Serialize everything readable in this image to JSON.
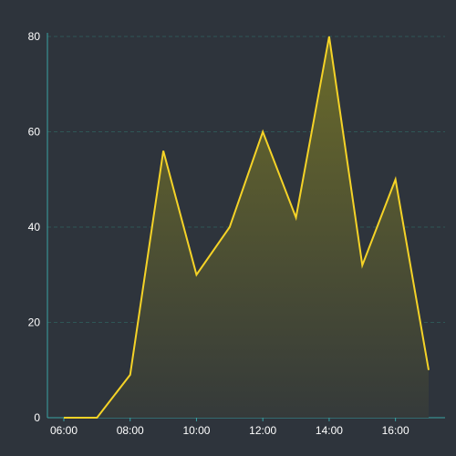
{
  "chart_data": {
    "type": "area",
    "title": "",
    "xlabel": "",
    "ylabel": "",
    "x": [
      "06:00",
      "07:00",
      "08:00",
      "09:00",
      "10:00",
      "11:00",
      "12:00",
      "13:00",
      "14:00",
      "15:00",
      "16:00",
      "17:00"
    ],
    "x_tick_labels": [
      "06:00",
      "08:00",
      "10:00",
      "12:00",
      "14:00",
      "16:00"
    ],
    "y_tick_labels": [
      "0",
      "20",
      "40",
      "60",
      "80"
    ],
    "ylim": [
      0,
      80
    ],
    "grid": true,
    "series": [
      {
        "values": [
          0,
          0,
          9,
          56,
          30,
          40,
          60,
          42,
          80,
          32,
          50,
          10
        ]
      }
    ],
    "colors": {
      "line": "#f5d327",
      "fill_top": "#6b6b2a",
      "fill_bottom": "#353a3a",
      "grid": "#2f5656",
      "axis": "#3aa3a3",
      "background": "#2e343c",
      "text": "#ffffff"
    }
  }
}
